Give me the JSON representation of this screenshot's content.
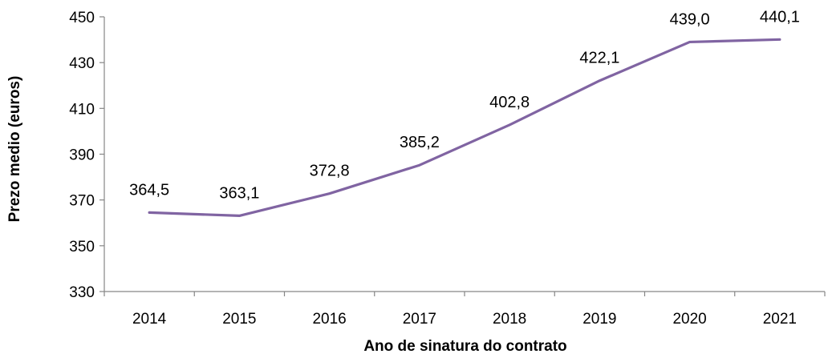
{
  "chart_data": {
    "type": "line",
    "categories": [
      "2014",
      "2015",
      "2016",
      "2017",
      "2018",
      "2019",
      "2020",
      "2021"
    ],
    "series": [
      {
        "values": [
          364.5,
          363.1,
          372.8,
          385.2,
          402.8,
          422.1,
          439.0,
          440.1
        ],
        "data_labels": [
          "364,5",
          "363,1",
          "372,8",
          "385,2",
          "402,8",
          "422,1",
          "439,0",
          "440,1"
        ]
      }
    ],
    "y_ticks": [
      "330",
      "350",
      "370",
      "390",
      "410",
      "430",
      "450"
    ],
    "ylim": [
      330,
      450
    ],
    "xlabel": "Ano de sinatura do contrato",
    "ylabel": "Prezo medio (euros)",
    "grid": false,
    "legend": "none",
    "line_color": "#8064a2"
  }
}
